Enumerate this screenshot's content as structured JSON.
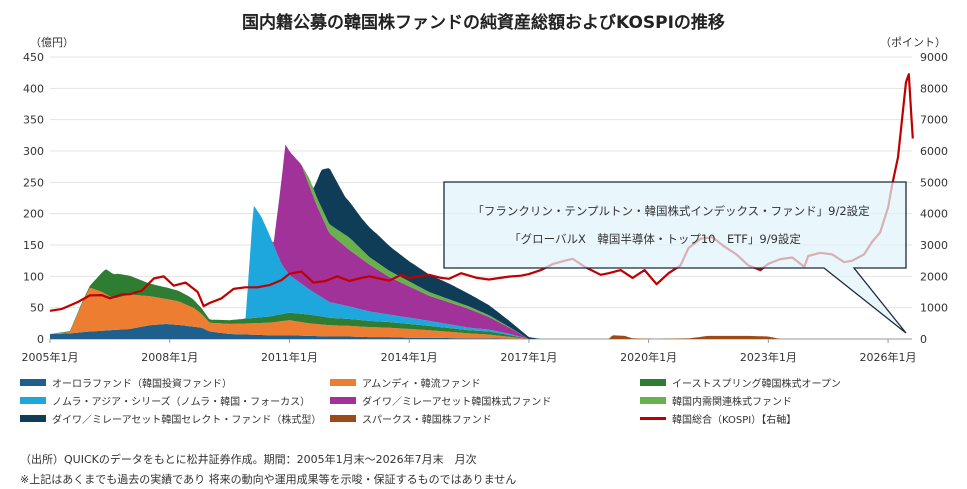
{
  "chart_data": {
    "type": "area",
    "title": "国内籍公募の韓国株ファンドの純資産総額およびKOSPIの推移",
    "y_left_label": "（億円）",
    "y_right_label": "（ポイント）",
    "ylim_left": [
      0,
      450
    ],
    "ylim_right": [
      0,
      9000
    ],
    "y_left_ticks": [
      0,
      50,
      100,
      150,
      200,
      250,
      300,
      350,
      400,
      450
    ],
    "y_right_ticks": [
      0,
      1000,
      2000,
      3000,
      4000,
      5000,
      6000,
      7000,
      8000,
      9000
    ],
    "x_ticks": [
      {
        "t": 2005.0,
        "label": "2005年1月"
      },
      {
        "t": 2008.0,
        "label": "2008年1月"
      },
      {
        "t": 2011.0,
        "label": "2011年1月"
      },
      {
        "t": 2014.0,
        "label": "2014年1月"
      },
      {
        "t": 2017.0,
        "label": "2017年1月"
      },
      {
        "t": 2020.0,
        "label": "2020年1月"
      },
      {
        "t": 2023.0,
        "label": "2023年1月"
      },
      {
        "t": 2026.0,
        "label": "2026年1月"
      }
    ],
    "xlim": [
      2005.0,
      2026.6
    ],
    "grid": true,
    "legend_position": "bottom",
    "series": [
      {
        "name": "オーロラファンド（韓国投資ファンド）",
        "axis": "left",
        "type": "area",
        "color": "#1f5f8b",
        "points": [
          [
            2005.0,
            8
          ],
          [
            2005.5,
            9
          ],
          [
            2006.0,
            12
          ],
          [
            2006.5,
            14
          ],
          [
            2007.0,
            16
          ],
          [
            2007.5,
            22
          ],
          [
            2007.9,
            24
          ],
          [
            2008.3,
            22
          ],
          [
            2008.8,
            18
          ],
          [
            2009.0,
            12
          ],
          [
            2009.5,
            8
          ],
          [
            2010.0,
            7
          ],
          [
            2010.5,
            6
          ],
          [
            2011.0,
            6
          ],
          [
            2011.5,
            5
          ],
          [
            2012.0,
            4
          ],
          [
            2012.5,
            4
          ],
          [
            2013.0,
            3
          ],
          [
            2013.5,
            3
          ],
          [
            2014.0,
            2
          ],
          [
            2014.5,
            2
          ],
          [
            2015.0,
            1.5
          ],
          [
            2015.5,
            1
          ],
          [
            2016.0,
            1
          ],
          [
            2016.5,
            0.5
          ],
          [
            2017.0,
            0
          ]
        ]
      },
      {
        "name": "アムンディ・韓流ファンド",
        "axis": "left",
        "type": "area",
        "color": "#ed7d31",
        "points": [
          [
            2005.0,
            0
          ],
          [
            2005.5,
            2
          ],
          [
            2005.8,
            45
          ],
          [
            2006.0,
            70
          ],
          [
            2006.3,
            62
          ],
          [
            2006.6,
            50
          ],
          [
            2007.0,
            55
          ],
          [
            2007.4,
            48
          ],
          [
            2007.9,
            40
          ],
          [
            2008.2,
            38
          ],
          [
            2008.6,
            30
          ],
          [
            2009.0,
            14
          ],
          [
            2009.5,
            16
          ],
          [
            2010.0,
            18
          ],
          [
            2010.5,
            20
          ],
          [
            2011.0,
            24
          ],
          [
            2011.5,
            20
          ],
          [
            2012.0,
            18
          ],
          [
            2012.5,
            17
          ],
          [
            2013.0,
            16
          ],
          [
            2013.5,
            15
          ],
          [
            2014.0,
            14
          ],
          [
            2014.5,
            12
          ],
          [
            2015.0,
            10
          ],
          [
            2015.5,
            8
          ],
          [
            2016.0,
            6
          ],
          [
            2016.5,
            3
          ],
          [
            2017.0,
            0
          ]
        ]
      },
      {
        "name": "イーストスプリング韓国株式オープン",
        "axis": "left",
        "type": "area",
        "color": "#2e7d32",
        "points": [
          [
            2005.0,
            0
          ],
          [
            2006.0,
            3
          ],
          [
            2006.4,
            40
          ],
          [
            2006.7,
            38
          ],
          [
            2007.0,
            30
          ],
          [
            2007.5,
            20
          ],
          [
            2008.0,
            18
          ],
          [
            2008.5,
            15
          ],
          [
            2009.0,
            5
          ],
          [
            2009.5,
            6
          ],
          [
            2010.0,
            8
          ],
          [
            2010.5,
            10
          ],
          [
            2011.0,
            12
          ],
          [
            2011.5,
            14
          ],
          [
            2012.0,
            12
          ],
          [
            2012.5,
            11
          ],
          [
            2013.0,
            10
          ],
          [
            2013.5,
            9
          ],
          [
            2014.0,
            8
          ],
          [
            2014.5,
            7
          ],
          [
            2015.0,
            6
          ],
          [
            2015.5,
            5
          ],
          [
            2016.0,
            5
          ],
          [
            2016.5,
            3
          ],
          [
            2017.0,
            0
          ]
        ]
      },
      {
        "name": "ノムラ・アジア・シリーズ（ノムラ・韓国・フォーカス）",
        "axis": "left",
        "type": "area",
        "color": "#1ea7dc",
        "points": [
          [
            2005.0,
            0
          ],
          [
            2009.9,
            0
          ],
          [
            2010.1,
            180
          ],
          [
            2010.3,
            160
          ],
          [
            2010.5,
            130
          ],
          [
            2010.8,
            80
          ],
          [
            2011.0,
            60
          ],
          [
            2011.5,
            40
          ],
          [
            2012.0,
            25
          ],
          [
            2012.5,
            20
          ],
          [
            2013.0,
            15
          ],
          [
            2013.5,
            12
          ],
          [
            2014.0,
            10
          ],
          [
            2014.5,
            8
          ],
          [
            2015.0,
            6
          ],
          [
            2015.5,
            4
          ],
          [
            2016.0,
            3
          ],
          [
            2016.5,
            2
          ],
          [
            2017.0,
            0
          ]
        ]
      },
      {
        "name": "ダイワ／ミレーアセット韓国株式ファンド",
        "axis": "left",
        "type": "area",
        "color": "#a0329a",
        "points": [
          [
            2005.0,
            0
          ],
          [
            2010.6,
            0
          ],
          [
            2010.9,
            200
          ],
          [
            2011.3,
            190
          ],
          [
            2011.7,
            140
          ],
          [
            2012.0,
            110
          ],
          [
            2012.5,
            90
          ],
          [
            2013.0,
            75
          ],
          [
            2013.5,
            60
          ],
          [
            2014.0,
            50
          ],
          [
            2014.5,
            40
          ],
          [
            2015.0,
            35
          ],
          [
            2015.5,
            30
          ],
          [
            2016.0,
            20
          ],
          [
            2016.5,
            10
          ],
          [
            2017.0,
            0
          ]
        ]
      },
      {
        "name": "韓国内需関連株式ファンド",
        "axis": "left",
        "type": "area",
        "color": "#6ab04c",
        "points": [
          [
            2005.0,
            0
          ],
          [
            2011.3,
            0
          ],
          [
            2011.5,
            12
          ],
          [
            2012.0,
            14
          ],
          [
            2012.5,
            20
          ],
          [
            2013.0,
            12
          ],
          [
            2013.5,
            10
          ],
          [
            2014.0,
            8
          ],
          [
            2014.5,
            6
          ],
          [
            2015.0,
            5
          ],
          [
            2015.5,
            4
          ],
          [
            2016.0,
            3
          ],
          [
            2016.5,
            1
          ],
          [
            2017.0,
            0
          ]
        ]
      },
      {
        "name": "ダイワ／ミレーアセット韓国セレクト・ファンド（株式型）",
        "axis": "left",
        "type": "area",
        "color": "#0f3d57",
        "points": [
          [
            2005.0,
            0
          ],
          [
            2011.6,
            0
          ],
          [
            2011.8,
            60
          ],
          [
            2012.0,
            90
          ],
          [
            2012.4,
            60
          ],
          [
            2012.8,
            50
          ],
          [
            2013.2,
            45
          ],
          [
            2013.6,
            38
          ],
          [
            2014.0,
            32
          ],
          [
            2014.5,
            28
          ],
          [
            2015.0,
            25
          ],
          [
            2015.5,
            20
          ],
          [
            2016.0,
            16
          ],
          [
            2016.5,
            10
          ],
          [
            2017.0,
            3
          ],
          [
            2017.3,
            0
          ]
        ]
      },
      {
        "name": "スパークス・韓国株ファンド",
        "axis": "left",
        "type": "area",
        "color": "#9c4a17",
        "points": [
          [
            2005.0,
            0
          ],
          [
            2019.0,
            0
          ],
          [
            2019.1,
            6
          ],
          [
            2019.4,
            5
          ],
          [
            2019.6,
            1
          ],
          [
            2020.2,
            0
          ],
          [
            2021.0,
            1
          ],
          [
            2021.5,
            5
          ],
          [
            2022.0,
            5
          ],
          [
            2022.5,
            5
          ],
          [
            2023.0,
            4
          ],
          [
            2023.3,
            0
          ]
        ]
      },
      {
        "name": "韓国総合（KOSPI）【右軸】",
        "axis": "right",
        "type": "line",
        "color": "#c00000",
        "points": [
          [
            2005.0,
            900
          ],
          [
            2005.3,
            960
          ],
          [
            2005.7,
            1180
          ],
          [
            2006.0,
            1390
          ],
          [
            2006.3,
            1400
          ],
          [
            2006.5,
            1300
          ],
          [
            2006.8,
            1420
          ],
          [
            2007.0,
            1430
          ],
          [
            2007.3,
            1540
          ],
          [
            2007.6,
            1930
          ],
          [
            2007.85,
            2000
          ],
          [
            2008.1,
            1700
          ],
          [
            2008.4,
            1800
          ],
          [
            2008.7,
            1500
          ],
          [
            2008.85,
            1050
          ],
          [
            2009.0,
            1150
          ],
          [
            2009.3,
            1300
          ],
          [
            2009.6,
            1600
          ],
          [
            2009.9,
            1650
          ],
          [
            2010.2,
            1650
          ],
          [
            2010.5,
            1720
          ],
          [
            2010.8,
            1880
          ],
          [
            2011.0,
            2080
          ],
          [
            2011.3,
            2150
          ],
          [
            2011.6,
            1800
          ],
          [
            2011.9,
            1850
          ],
          [
            2012.2,
            2000
          ],
          [
            2012.5,
            1850
          ],
          [
            2012.8,
            1950
          ],
          [
            2013.0,
            2000
          ],
          [
            2013.5,
            1860
          ],
          [
            2013.8,
            2050
          ],
          [
            2014.0,
            1950
          ],
          [
            2014.5,
            2050
          ],
          [
            2014.8,
            1950
          ],
          [
            2015.0,
            1920
          ],
          [
            2015.3,
            2100
          ],
          [
            2015.7,
            1950
          ],
          [
            2016.0,
            1900
          ],
          [
            2016.5,
            1990
          ],
          [
            2016.8,
            2020
          ],
          [
            2017.0,
            2070
          ],
          [
            2017.3,
            2200
          ],
          [
            2017.6,
            2390
          ],
          [
            2017.9,
            2500
          ],
          [
            2018.1,
            2560
          ],
          [
            2018.4,
            2300
          ],
          [
            2018.8,
            2050
          ],
          [
            2019.0,
            2100
          ],
          [
            2019.3,
            2200
          ],
          [
            2019.6,
            1950
          ],
          [
            2019.9,
            2200
          ],
          [
            2020.2,
            1750
          ],
          [
            2020.5,
            2100
          ],
          [
            2020.8,
            2350
          ],
          [
            2021.0,
            2900
          ],
          [
            2021.3,
            3200
          ],
          [
            2021.6,
            3250
          ],
          [
            2021.9,
            2950
          ],
          [
            2022.2,
            2700
          ],
          [
            2022.5,
            2350
          ],
          [
            2022.8,
            2200
          ],
          [
            2023.0,
            2400
          ],
          [
            2023.3,
            2550
          ],
          [
            2023.6,
            2600
          ],
          [
            2023.9,
            2300
          ],
          [
            2024.0,
            2650
          ],
          [
            2024.3,
            2750
          ],
          [
            2024.6,
            2700
          ],
          [
            2024.9,
            2450
          ],
          [
            2025.1,
            2500
          ],
          [
            2025.4,
            2700
          ],
          [
            2025.6,
            3100
          ],
          [
            2025.8,
            3400
          ],
          [
            2026.0,
            4200
          ],
          [
            2026.1,
            4900
          ],
          [
            2026.25,
            5800
          ],
          [
            2026.35,
            7000
          ],
          [
            2026.45,
            8200
          ],
          [
            2026.52,
            8450
          ],
          [
            2026.58,
            7200
          ],
          [
            2026.62,
            6400
          ]
        ]
      }
    ],
    "annotation": {
      "lines": [
        "「フランクリン・テンプルトン・韓国株式インデックス・ファンド」9/2設定",
        "「グローバルX　韓国半導体・トップ10　ETF」9/9設定"
      ]
    }
  },
  "footer": {
    "source": "（出所）QUICKのデータをもとに松井証券作成。期間：2005年1月末～2026年7月末　月次",
    "disclaimer": "※上記はあくまでも過去の実績であり 将来の動向や運用成果等を示唆・保証するものではありません"
  }
}
